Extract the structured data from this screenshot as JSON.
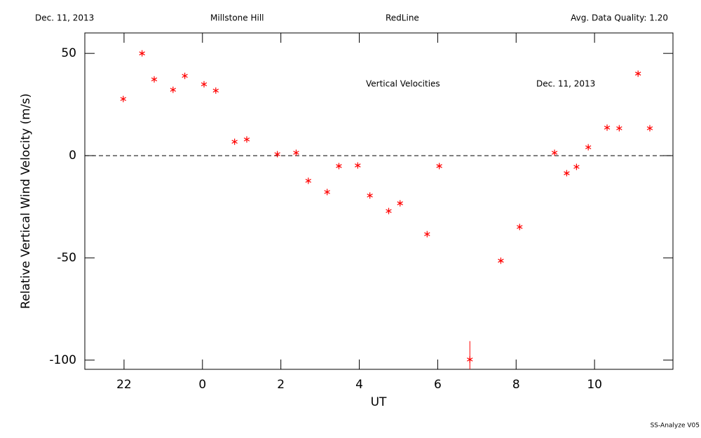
{
  "chart_data": {
    "type": "scatter",
    "header": [
      "Dec. 11, 2013",
      "Millstone Hill",
      "RedLine",
      "Avg. Data Quality: 1.20"
    ],
    "annotations": [
      "Vertical Velocities",
      "Dec. 11, 2013"
    ],
    "footer": "SS-Analyze V05",
    "xlabel": "UT",
    "ylabel": "Relative Vertical Wind Velocity (m/s)",
    "xlim": [
      21,
      36
    ],
    "ylim": [
      -104.5,
      60
    ],
    "xticks": [
      {
        "value": 22,
        "label": "22"
      },
      {
        "value": 24,
        "label": "0"
      },
      {
        "value": 26,
        "label": "2"
      },
      {
        "value": 28,
        "label": "4"
      },
      {
        "value": 30,
        "label": "6"
      },
      {
        "value": 32,
        "label": "8"
      },
      {
        "value": 34,
        "label": "10"
      }
    ],
    "yticks": [
      -100,
      -50,
      0,
      50
    ],
    "hline": 0,
    "series": [
      {
        "color": "#ff0000",
        "x": [
          21.98,
          22.46,
          22.77,
          23.25,
          23.55,
          24.04,
          24.34,
          24.82,
          25.13,
          25.91,
          26.39,
          26.7,
          27.18,
          27.48,
          27.96,
          28.27,
          28.75,
          29.04,
          29.73,
          30.04,
          30.82,
          31.61,
          32.09,
          32.98,
          33.29,
          33.54,
          33.84,
          34.32,
          34.63,
          35.11,
          35.41
        ],
        "values": [
          27.7,
          50,
          37.3,
          32.2,
          39.0,
          34.9,
          31.8,
          6.8,
          7.9,
          0.7,
          1.4,
          -12.3,
          -17.8,
          -5.1,
          -4.8,
          -19.5,
          -27.1,
          -23.3,
          -38.4,
          -5.1,
          -99.7,
          -51.4,
          -34.9,
          1.4,
          -8.6,
          -5.5,
          4.1,
          13.7,
          13.4,
          40.1,
          13.4
        ],
        "errors": [
          null,
          null,
          null,
          null,
          null,
          null,
          null,
          null,
          null,
          null,
          null,
          null,
          null,
          null,
          null,
          null,
          null,
          null,
          null,
          null,
          9,
          null,
          null,
          null,
          null,
          null,
          null,
          null,
          null,
          null,
          null
        ]
      }
    ]
  }
}
